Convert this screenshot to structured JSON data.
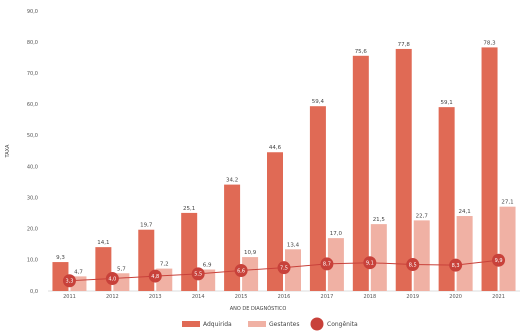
{
  "chart_data": {
    "type": "bar",
    "categories": [
      "2011",
      "2012",
      "2013",
      "2014",
      "2015",
      "2016",
      "2017",
      "2018",
      "2019",
      "2020",
      "2021"
    ],
    "series": [
      {
        "name": "Adquirida",
        "kind": "bar",
        "color": "#e06a55",
        "values": [
          9.3,
          14.1,
          19.7,
          25.1,
          34.2,
          44.6,
          59.4,
          75.6,
          77.8,
          59.1,
          78.3
        ],
        "labels": [
          "9,3",
          "14,1",
          "19,7",
          "25,1",
          "34,2",
          "44,6",
          "59,4",
          "75,6",
          "77,8",
          "59,1",
          "78,3"
        ]
      },
      {
        "name": "Gestantes",
        "kind": "bar",
        "color": "#f0b1a4",
        "values": [
          4.7,
          5.7,
          7.2,
          6.9,
          10.9,
          13.4,
          17.0,
          21.5,
          22.7,
          24.1,
          27.1
        ],
        "labels": [
          "4,7",
          "5,7",
          "7,2",
          "6,9",
          "10,9",
          "13,4",
          "17,0",
          "21,5",
          "22,7",
          "24,1",
          "27,1"
        ]
      },
      {
        "name": "Congênita",
        "kind": "line",
        "color": "#c8413a",
        "values": [
          3.3,
          4.0,
          4.8,
          5.5,
          6.6,
          7.5,
          8.7,
          9.1,
          8.5,
          8.3,
          9.9
        ],
        "labels": [
          "3,3",
          "4,0",
          "4,8",
          "5,5",
          "6,6",
          "7,5",
          "8,7",
          "9,1",
          "8,5",
          "8,3",
          "9,9"
        ]
      }
    ],
    "xlabel": "ANO DE DIAGNÓSTICO",
    "ylabel": "TAXA",
    "ylim": [
      0,
      90
    ],
    "yticks": [
      0,
      10,
      20,
      30,
      40,
      50,
      60,
      70,
      80,
      90
    ],
    "ytick_labels": [
      "0,0",
      "10,0",
      "20,0",
      "30,0",
      "40,0",
      "50,0",
      "60,0",
      "70,0",
      "80,0",
      "90,0"
    ],
    "grid": false,
    "legend": "bottom"
  }
}
